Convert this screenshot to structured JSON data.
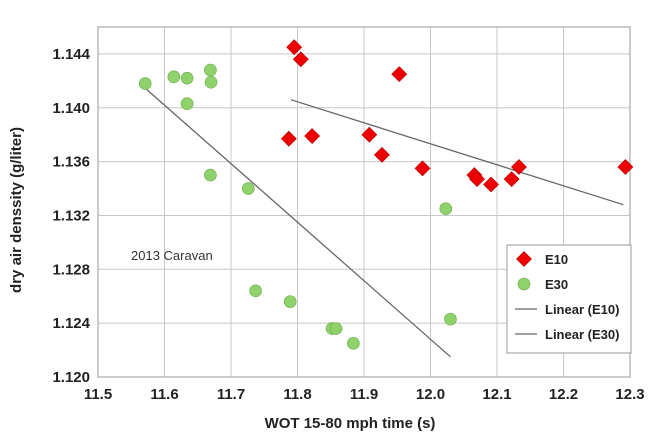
{
  "chart_data": {
    "type": "scatter",
    "title": "",
    "xlabel": "WOT 15-80 mph time (s)",
    "ylabel": "dry air denssity (g/liter)",
    "xlim": [
      11.5,
      12.3
    ],
    "ylim": [
      1.12,
      1.146
    ],
    "x_ticks": [
      "11.5",
      "11.6",
      "11.7",
      "11.8",
      "11.9",
      "12.0",
      "12.1",
      "12.2",
      "12.3"
    ],
    "y_ticks": [
      "1.120",
      "1.124",
      "1.128",
      "1.132",
      "1.136",
      "1.140",
      "1.144"
    ],
    "grid": true,
    "legend_position": "bottom-right",
    "annotation": "2013 Caravan",
    "series": [
      {
        "name": "E10",
        "marker": "diamond",
        "color": "#ee0000",
        "points": [
          [
            11.795,
            1.1445
          ],
          [
            11.805,
            1.1436
          ],
          [
            11.953,
            1.1425
          ],
          [
            11.787,
            1.1377
          ],
          [
            11.822,
            1.1379
          ],
          [
            11.908,
            1.138
          ],
          [
            11.927,
            1.1365
          ],
          [
            11.988,
            1.1355
          ],
          [
            12.066,
            1.135
          ],
          [
            12.07,
            1.1347
          ],
          [
            12.091,
            1.1343
          ],
          [
            12.122,
            1.1347
          ],
          [
            12.133,
            1.1356
          ],
          [
            12.293,
            1.1356
          ]
        ]
      },
      {
        "name": "E30",
        "marker": "circle",
        "color": "#8fd16a",
        "points": [
          [
            11.571,
            1.1418
          ],
          [
            11.614,
            1.1423
          ],
          [
            11.634,
            1.1422
          ],
          [
            11.669,
            1.1428
          ],
          [
            11.67,
            1.1419
          ],
          [
            11.634,
            1.1403
          ],
          [
            11.669,
            1.135
          ],
          [
            11.726,
            1.134
          ],
          [
            11.737,
            1.1264
          ],
          [
            11.789,
            1.1256
          ],
          [
            11.852,
            1.1236
          ],
          [
            11.858,
            1.1236
          ],
          [
            11.884,
            1.1225
          ],
          [
            12.023,
            1.1325
          ],
          [
            12.03,
            1.1243
          ]
        ]
      }
    ],
    "trendlines": [
      {
        "name": "Linear (E10)",
        "color": "#666666",
        "x": [
          11.79,
          12.29
        ],
        "y": [
          1.1406,
          1.1328
        ]
      },
      {
        "name": "Linear (E30)",
        "color": "#666666",
        "x": [
          11.57,
          12.03
        ],
        "y": [
          1.1415,
          1.1215
        ]
      }
    ]
  }
}
